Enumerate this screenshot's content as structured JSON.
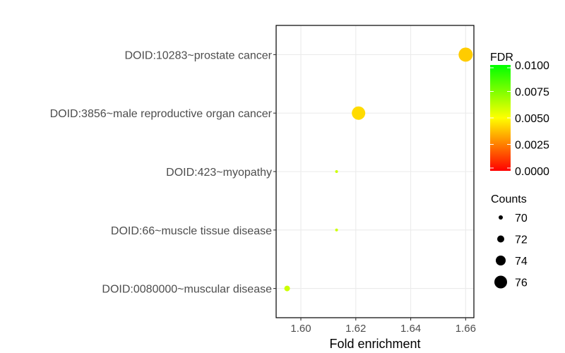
{
  "chart_data": {
    "type": "scatter",
    "title": "",
    "xlabel": "Fold enrichment",
    "ylabel": "",
    "xlim": [
      1.591,
      1.663
    ],
    "x_ticks": [
      1.6,
      1.62,
      1.64,
      1.66
    ],
    "x_tick_labels": [
      "1.60",
      "1.62",
      "1.64",
      "1.66"
    ],
    "grid": true,
    "categories": [
      "DOID:10283~prostate cancer",
      "DOID:3856~male reproductive organ cancer",
      "DOID:423~myopathy",
      "DOID:66~muscle tissue disease",
      "DOID:0080000~muscular disease"
    ],
    "points": [
      {
        "category": "DOID:10283~prostate cancer",
        "x": 1.66,
        "counts": 77,
        "fdr": 0.004
      },
      {
        "category": "DOID:3856~male reproductive organ cancer",
        "x": 1.621,
        "counts": 76.5,
        "fdr": 0.0043
      },
      {
        "category": "DOID:423~myopathy",
        "x": 1.613,
        "counts": 69,
        "fdr": 0.006
      },
      {
        "category": "DOID:66~muscle tissue disease",
        "x": 1.613,
        "counts": 69,
        "fdr": 0.006
      },
      {
        "category": "DOID:0080000~muscular disease",
        "x": 1.595,
        "counts": 71,
        "fdr": 0.006
      }
    ],
    "color_legend": {
      "title": "FDR",
      "min": 0,
      "max": 0.01,
      "ticks": [
        0.01,
        0.0075,
        0.005,
        0.0025,
        0.0
      ],
      "tick_labels": [
        "0.0100",
        "0.0075",
        "0.0050",
        "0.0025",
        "0.0000"
      ],
      "colors": [
        "#ff0000",
        "#ffff00",
        "#00ff00"
      ]
    },
    "size_legend": {
      "title": "Counts",
      "values": [
        70,
        72,
        74,
        76
      ],
      "labels": [
        "70",
        "72",
        "74",
        "76"
      ]
    },
    "legend_position": "right"
  }
}
